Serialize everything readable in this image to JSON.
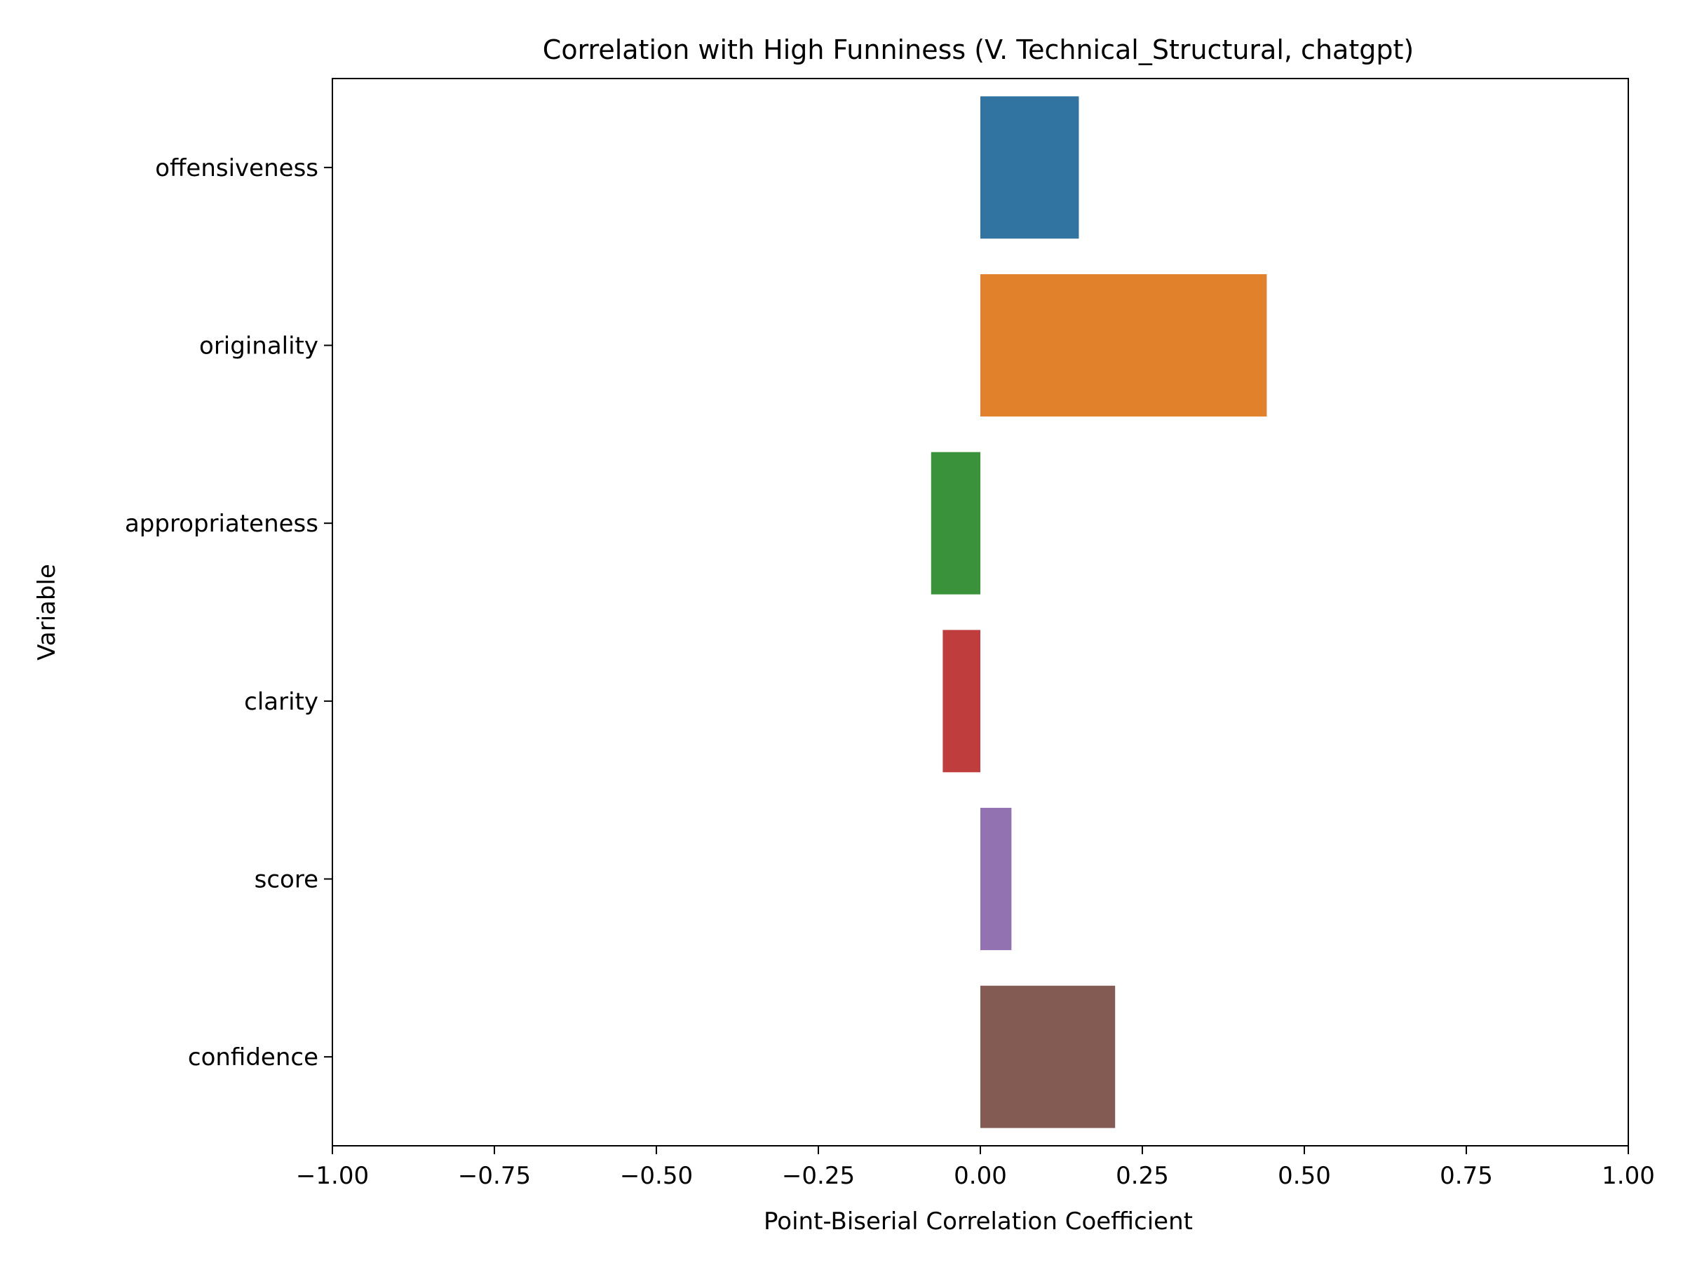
{
  "chart_data": {
    "type": "bar",
    "orientation": "horizontal",
    "title": "Correlation with High Funniness (V. Technical_Structural, chatgpt)",
    "xlabel": "Point-Biserial Correlation Coefficient",
    "ylabel": "Variable",
    "xlim": [
      -1.0,
      1.0
    ],
    "x_ticks": [
      -1.0,
      -0.75,
      -0.5,
      -0.25,
      0.0,
      0.25,
      0.5,
      0.75,
      1.0
    ],
    "x_tick_labels": [
      "−1.00",
      "−0.75",
      "−0.50",
      "−0.25",
      "0.00",
      "0.25",
      "0.50",
      "0.75",
      "1.00"
    ],
    "categories": [
      "offensiveness",
      "originality",
      "appropriateness",
      "clarity",
      "score",
      "confidence"
    ],
    "values": [
      0.152,
      0.442,
      -0.076,
      -0.058,
      0.048,
      0.208
    ],
    "colors": [
      "#3274a1",
      "#e1812c",
      "#3a923a",
      "#c03d3e",
      "#9372b2",
      "#845b53"
    ],
    "grid": false,
    "legend": "none"
  }
}
